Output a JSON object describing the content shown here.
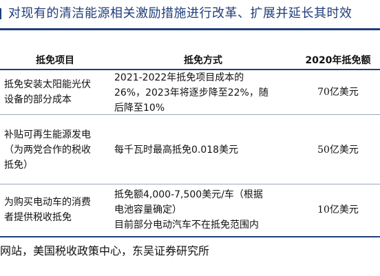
{
  "title": "对现有的清洁能源相关激励措施进行改革、扩展并延长其时效",
  "table": {
    "headers": [
      "抵免项目",
      "抵免方式",
      "2020年抵免额"
    ],
    "rows": [
      {
        "item": [
          "抵免安装太阳能光伏",
          "设备的部分成本"
        ],
        "method": [
          "2021-2022年抵免项目成本的",
          "26%，2023年将逐步降至22%，随",
          "后降至10%"
        ],
        "amount": "70亿美元"
      },
      {
        "item": [
          "补贴可再生能源发电",
          "（为两党合作的税收",
          "抵免）"
        ],
        "method": [
          "每千瓦时最高抵免0.018美元"
        ],
        "amount": "50亿美元"
      },
      {
        "item": [
          "为购买电动车的消费",
          "者提供税收抵免"
        ],
        "method": [
          "抵免额4,000-7,500美元/车（根据",
          "电池容量确定）",
          "目前部分电动汽车不在抵免范围内"
        ],
        "amount": "10亿美元"
      }
    ]
  },
  "source": "网站，美国税收政策中心，东吴证券研究所"
}
